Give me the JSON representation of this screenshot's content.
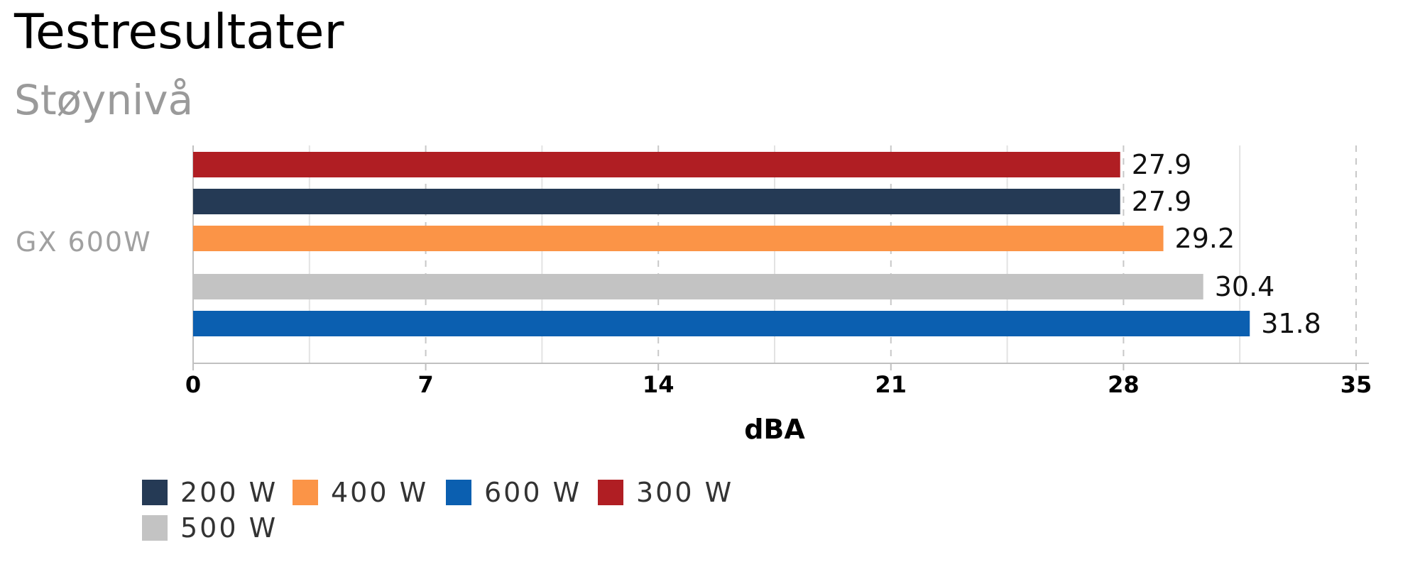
{
  "title": "Testresultater",
  "subtitle": "Støynivå",
  "chart_data": {
    "type": "bar",
    "orientation": "horizontal",
    "category": "GX 600W",
    "xlabel": "dBA",
    "xlim": [
      0,
      35
    ],
    "ticks": [
      0,
      7,
      14,
      21,
      28,
      35
    ],
    "grid": true,
    "legend_position": "bottom-left",
    "bars": [
      {
        "name": "300 W",
        "value": 27.9,
        "label": "27.9",
        "color": "#b01e23"
      },
      {
        "name": "200 W",
        "value": 27.9,
        "label": "27.9",
        "color": "#253a55"
      },
      {
        "name": "400 W",
        "value": 29.2,
        "label": "29.2",
        "color": "#fb9447"
      },
      {
        "name": "500 W",
        "value": 30.4,
        "label": "30.4",
        "color": "#c3c3c3"
      },
      {
        "name": "600 W",
        "value": 31.8,
        "label": "31.8",
        "color": "#0b5fb0"
      }
    ],
    "legend": [
      {
        "name": "200 W",
        "color": "#253a55"
      },
      {
        "name": "400 W",
        "color": "#fb9447"
      },
      {
        "name": "600 W",
        "color": "#0b5fb0"
      },
      {
        "name": "300 W",
        "color": "#b01e23"
      },
      {
        "name": "500 W",
        "color": "#c3c3c3"
      }
    ]
  }
}
